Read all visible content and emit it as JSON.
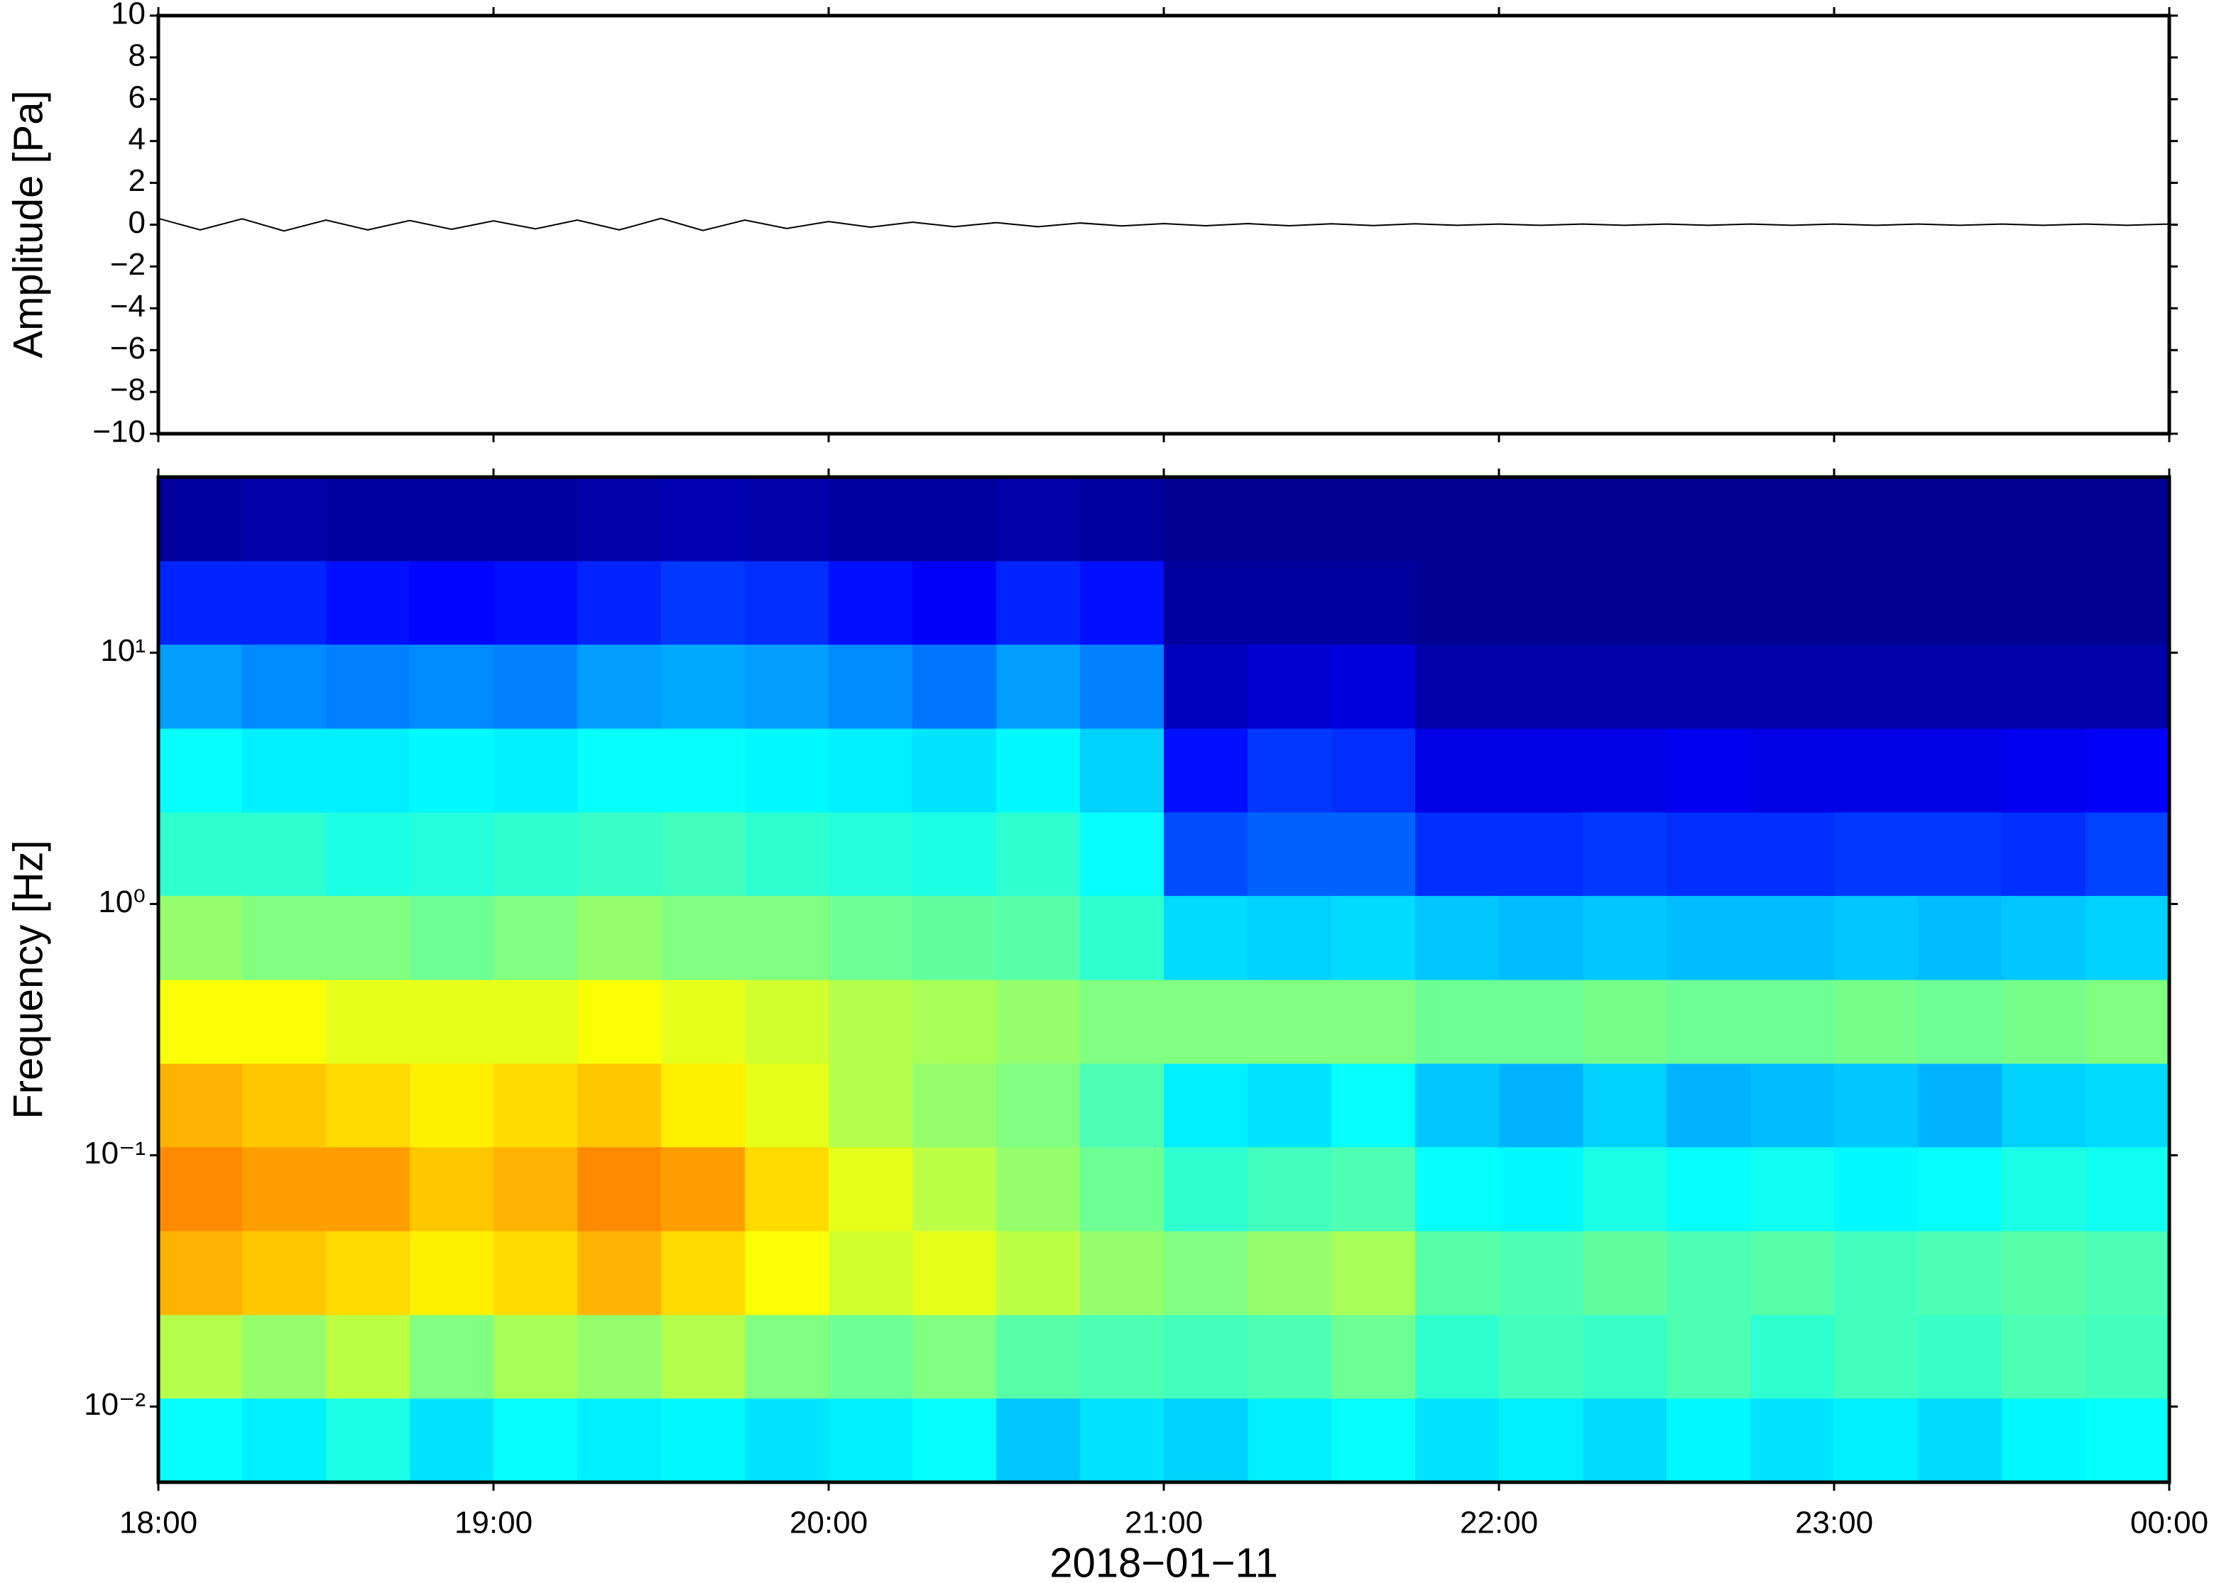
{
  "chart_data": [
    {
      "type": "line",
      "ylabel": "Amplitude [Pa]",
      "color": "#000000",
      "xlim": [
        18,
        24
      ],
      "ylim": [
        -10,
        10
      ],
      "yticks": [
        {
          "value": -10,
          "label": "−10"
        },
        {
          "value": -8,
          "label": "−8"
        },
        {
          "value": -6,
          "label": "−6"
        },
        {
          "value": -4,
          "label": "−4"
        },
        {
          "value": -2,
          "label": "−2"
        },
        0,
        2,
        4,
        6,
        8,
        10
      ],
      "x": [
        18,
        18.125,
        18.25,
        18.375,
        18.5,
        18.625,
        18.75,
        18.875,
        19,
        19.125,
        19.25,
        19.375,
        19.5,
        19.625,
        19.75,
        19.875,
        20,
        20.125,
        20.25,
        20.375,
        20.5,
        20.625,
        20.75,
        20.875,
        21,
        21.125,
        21.25,
        21.375,
        21.5,
        21.625,
        21.75,
        21.875,
        22,
        22.125,
        22.25,
        22.375,
        22.5,
        22.625,
        22.75,
        22.875,
        23,
        23.125,
        23.25,
        23.375,
        23.5,
        23.625,
        23.75,
        23.875,
        24
      ],
      "values": [
        0.3,
        -0.25,
        0.28,
        -0.3,
        0.22,
        -0.25,
        0.2,
        -0.22,
        0.18,
        -0.2,
        0.22,
        -0.25,
        0.3,
        -0.28,
        0.22,
        -0.18,
        0.15,
        -0.12,
        0.12,
        -0.1,
        0.1,
        -0.1,
        0.08,
        -0.06,
        0.05,
        -0.05,
        0.05,
        -0.05,
        0.04,
        -0.04,
        0.04,
        -0.03,
        0.03,
        -0.03,
        0.03,
        -0.03,
        0.03,
        -0.03,
        0.03,
        -0.03,
        0.03,
        -0.03,
        0.03,
        -0.03,
        0.03,
        -0.03,
        0.03,
        -0.03,
        0.03
      ]
    },
    {
      "type": "heatmap",
      "ylabel": "Frequency [Hz]",
      "xlabel": "2018−01−11",
      "colormap": "jet",
      "ylog": true,
      "xlim": [
        18,
        24
      ],
      "ylim": [
        0.005,
        50
      ],
      "xticks": [
        {
          "value": 18,
          "label": "18:00"
        },
        {
          "value": 19,
          "label": "19:00"
        },
        {
          "value": 20,
          "label": "20:00"
        },
        {
          "value": 21,
          "label": "21:00"
        },
        {
          "value": 22,
          "label": "22:00"
        },
        {
          "value": 23,
          "label": "23:00"
        },
        {
          "value": 24,
          "label": "00:00"
        }
      ],
      "yticks": [
        {
          "value": 0.01,
          "label": "10⁻²"
        },
        {
          "value": 0.1,
          "label": "10⁻¹"
        },
        {
          "value": 1,
          "label": "10⁰"
        },
        {
          "value": 10,
          "label": "10¹"
        }
      ],
      "x_bins": [
        18,
        18.25,
        18.5,
        18.75,
        19,
        19.25,
        19.5,
        19.75,
        20,
        20.25,
        20.5,
        20.75,
        21,
        21.25,
        21.5,
        21.75,
        22,
        22.25,
        22.5,
        22.75,
        23,
        23.25,
        23.5,
        23.75,
        24
      ],
      "y_bins": [
        0.005,
        0.0108,
        0.0232,
        0.05,
        0.108,
        0.232,
        0.5,
        1.08,
        2.32,
        5,
        10.8,
        23.2,
        50
      ],
      "z": [
        [
          0.38,
          0.36,
          0.4,
          0.35,
          0.38,
          0.36,
          0.37,
          0.35,
          0.36,
          0.38,
          0.32,
          0.35,
          0.33,
          0.36,
          0.38,
          0.35,
          0.36,
          0.34,
          0.37,
          0.35,
          0.36,
          0.34,
          0.37,
          0.38
        ],
        [
          0.55,
          0.52,
          0.56,
          0.5,
          0.54,
          0.52,
          0.55,
          0.5,
          0.48,
          0.5,
          0.46,
          0.45,
          0.44,
          0.45,
          0.48,
          0.42,
          0.44,
          0.43,
          0.45,
          0.42,
          0.44,
          0.43,
          0.45,
          0.44
        ],
        [
          0.7,
          0.68,
          0.66,
          0.64,
          0.66,
          0.7,
          0.66,
          0.62,
          0.58,
          0.6,
          0.56,
          0.52,
          0.5,
          0.52,
          0.54,
          0.46,
          0.45,
          0.47,
          0.45,
          0.46,
          0.44,
          0.45,
          0.46,
          0.45
        ],
        [
          0.74,
          0.72,
          0.72,
          0.68,
          0.7,
          0.74,
          0.72,
          0.66,
          0.6,
          0.56,
          0.52,
          0.48,
          0.42,
          0.44,
          0.45,
          0.38,
          0.37,
          0.4,
          0.38,
          0.39,
          0.37,
          0.38,
          0.4,
          0.39
        ],
        [
          0.7,
          0.68,
          0.66,
          0.64,
          0.66,
          0.68,
          0.64,
          0.6,
          0.55,
          0.52,
          0.5,
          0.45,
          0.36,
          0.35,
          0.38,
          0.32,
          0.3,
          0.33,
          0.3,
          0.31,
          0.32,
          0.3,
          0.33,
          0.34
        ],
        [
          0.62,
          0.62,
          0.6,
          0.6,
          0.6,
          0.62,
          0.6,
          0.58,
          0.55,
          0.54,
          0.52,
          0.5,
          0.5,
          0.5,
          0.5,
          0.48,
          0.48,
          0.49,
          0.48,
          0.48,
          0.49,
          0.48,
          0.49,
          0.5
        ],
        [
          0.52,
          0.5,
          0.5,
          0.48,
          0.5,
          0.52,
          0.5,
          0.5,
          0.48,
          0.47,
          0.46,
          0.42,
          0.34,
          0.33,
          0.34,
          0.32,
          0.31,
          0.32,
          0.31,
          0.31,
          0.32,
          0.31,
          0.32,
          0.33
        ],
        [
          0.42,
          0.42,
          0.4,
          0.41,
          0.42,
          0.43,
          0.44,
          0.42,
          0.41,
          0.4,
          0.42,
          0.38,
          0.2,
          0.22,
          0.22,
          0.17,
          0.17,
          0.18,
          0.17,
          0.17,
          0.18,
          0.18,
          0.17,
          0.19
        ],
        [
          0.38,
          0.36,
          0.36,
          0.37,
          0.36,
          0.38,
          0.38,
          0.37,
          0.36,
          0.35,
          0.37,
          0.33,
          0.14,
          0.18,
          0.17,
          0.1,
          0.1,
          0.1,
          0.11,
          0.1,
          0.1,
          0.1,
          0.11,
          0.12
        ],
        [
          0.28,
          0.26,
          0.25,
          0.26,
          0.25,
          0.28,
          0.29,
          0.28,
          0.26,
          0.24,
          0.28,
          0.25,
          0.06,
          0.08,
          0.09,
          0.04,
          0.04,
          0.04,
          0.04,
          0.04,
          0.04,
          0.04,
          0.04,
          0.04
        ],
        [
          0.16,
          0.16,
          0.14,
          0.13,
          0.14,
          0.16,
          0.18,
          0.17,
          0.14,
          0.12,
          0.16,
          0.14,
          0.03,
          0.03,
          0.03,
          0.02,
          0.02,
          0.02,
          0.02,
          0.02,
          0.02,
          0.02,
          0.02,
          0.02
        ],
        [
          0.03,
          0.04,
          0.03,
          0.03,
          0.03,
          0.04,
          0.05,
          0.04,
          0.03,
          0.03,
          0.04,
          0.03,
          0.02,
          0.02,
          0.02,
          0.02,
          0.02,
          0.02,
          0.02,
          0.02,
          0.02,
          0.02,
          0.02,
          0.02
        ]
      ]
    }
  ]
}
